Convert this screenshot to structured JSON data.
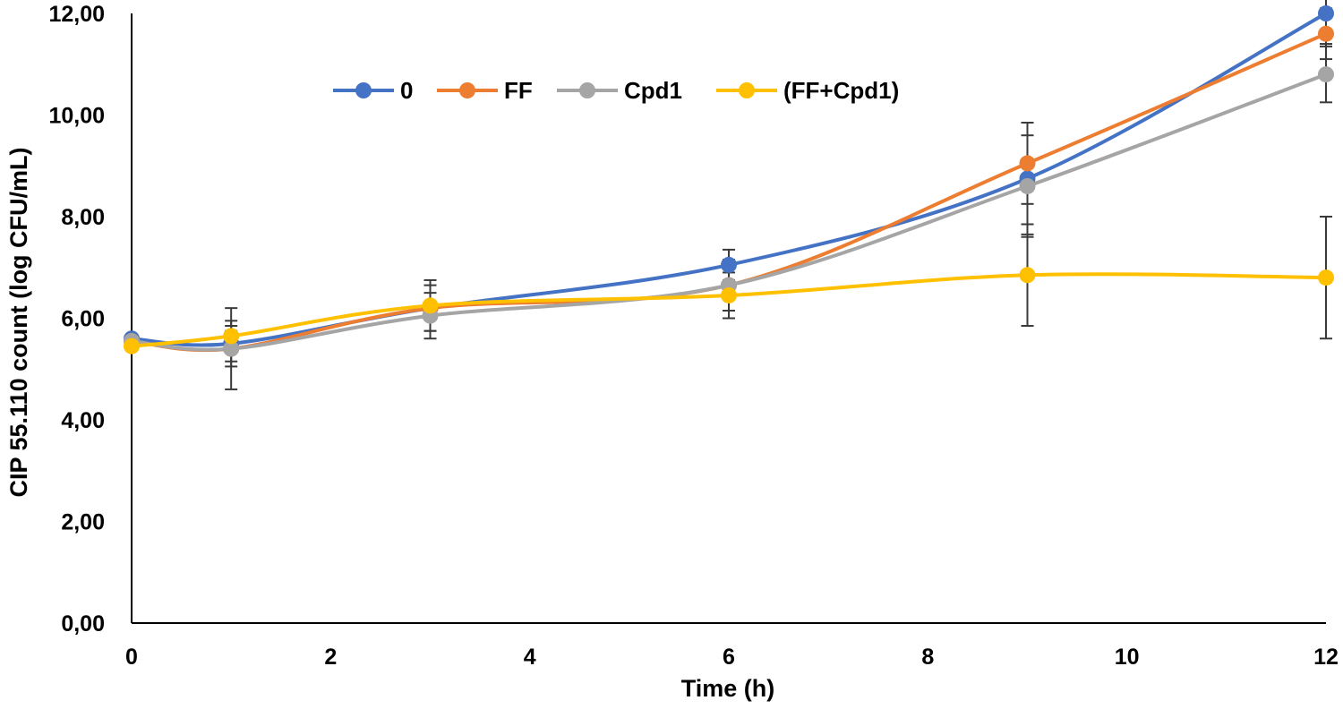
{
  "chart_data": {
    "type": "line",
    "title": "",
    "xlabel": "Time (h)",
    "ylabel": "CIP 55.110 count (log CFU/mL)",
    "xlim": [
      0,
      12
    ],
    "ylim": [
      0,
      12
    ],
    "x_ticks": [
      0,
      2,
      4,
      6,
      8,
      10,
      12
    ],
    "x_tick_labels": [
      "0",
      "2",
      "4",
      "6",
      "8",
      "10",
      "12"
    ],
    "y_ticks": [
      0,
      2,
      4,
      6,
      8,
      10,
      12
    ],
    "y_tick_labels": [
      "0,00",
      "2,00",
      "4,00",
      "6,00",
      "8,00",
      "10,00",
      "12,00"
    ],
    "grid": false,
    "legend_position": "top",
    "x": [
      0,
      1,
      3,
      6,
      9,
      12
    ],
    "series": [
      {
        "name": "0",
        "color": "#4472C4",
        "values": [
          5.6,
          5.5,
          6.2,
          7.05,
          8.75,
          12.0
        ],
        "errors": [
          0,
          0.35,
          0,
          0.3,
          1.1,
          0.6
        ]
      },
      {
        "name": "FF",
        "color": "#ED7D31",
        "values": [
          5.55,
          5.4,
          6.2,
          6.65,
          9.05,
          11.6
        ],
        "errors": [
          0,
          0.35,
          0.45,
          0.5,
          0.8,
          0.5
        ]
      },
      {
        "name": "Cpd1",
        "color": "#A5A5A5",
        "values": [
          5.55,
          5.4,
          6.05,
          6.65,
          8.6,
          10.8
        ],
        "errors": [
          0,
          0.8,
          0.45,
          0.5,
          1.0,
          0.55
        ]
      },
      {
        "name": "(FF+Cpd1)",
        "color": "#FFC000",
        "values": [
          5.45,
          5.65,
          6.25,
          6.45,
          6.85,
          6.8
        ],
        "errors": [
          0,
          0.3,
          0.5,
          0.45,
          1.0,
          1.2
        ]
      }
    ]
  }
}
